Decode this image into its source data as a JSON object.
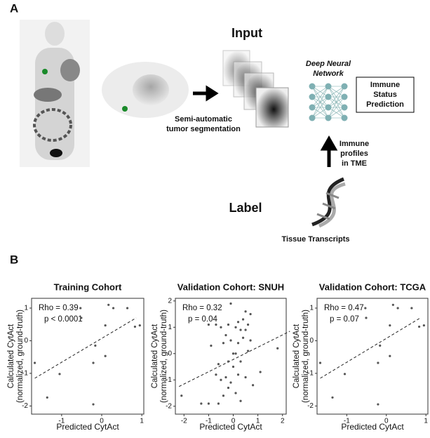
{
  "panel_a": {
    "label": "A",
    "input": "Input",
    "label_title": "Label",
    "segmentation": [
      "Semi-automatic",
      "tumor segmentation"
    ],
    "network": [
      "Deep Neural",
      "Network"
    ],
    "prediction": [
      "Immune",
      "Status",
      "Prediction"
    ],
    "profiles": [
      "Immune",
      "profiles",
      "in TME"
    ],
    "transcripts": "Tissue Transcripts"
  },
  "panel_b": {
    "label": "B"
  },
  "chart_data": [
    {
      "type": "scatter",
      "title": "Training Cohort",
      "x_label": "Predicted CytAct",
      "y_label": [
        "Calculated CytAct",
        "(normalized, ground-truth)"
      ],
      "annotations": [
        "Rho = 0.39",
        "p < 0.0001"
      ],
      "x": [
        -0.53,
        -0.51,
        0.17,
        0.29,
        0.64,
        0.83,
        0.95,
        0.09,
        -0.21,
        -0.16,
        0.09,
        -1.67,
        -1.05,
        -1.36,
        -0.21
      ],
      "y": [
        1.0,
        0.7,
        1.1,
        1.0,
        1.0,
        0.43,
        0.47,
        0.47,
        -0.68,
        -0.15,
        -0.47,
        -0.68,
        -1.02,
        -1.74,
        -1.95
      ],
      "trend_line": {
        "x": [
          -1.67,
          0.86
        ],
        "y": [
          -1.15,
          0.7
        ]
      },
      "xlim": [
        -1.75,
        1.05
      ],
      "ylim": [
        -2.25,
        1.3
      ],
      "xticks": [
        -1,
        0,
        1
      ],
      "yticks": [
        1,
        0,
        -1,
        -2
      ]
    },
    {
      "type": "scatter",
      "title": "Validation Cohort: SNUH",
      "x_label": "Predicted CytAct",
      "y_label": [
        "Calculated CytAct",
        "(normalized, ground-truth)"
      ],
      "annotations": [
        "Rho = 0.32",
        "p = 0.04"
      ],
      "x": [
        -2.1,
        -1.3,
        -1.0,
        -0.6,
        -0.4,
        -0.2,
        0.1,
        0.3,
        -0.7,
        -0.5,
        -0.3,
        -0.1,
        0.2,
        0.5,
        0.8,
        -0.6,
        -0.2,
        0.0,
        0.1,
        0.3,
        0.6,
        1.1,
        -0.9,
        -0.4,
        -0.1,
        0.2,
        0.4,
        0.7,
        1.8,
        -0.7,
        -0.5,
        -0.2,
        0.1,
        0.4,
        0.6,
        0.5,
        0.2,
        -0.3,
        0.7,
        0.5,
        -0.1,
        0.0,
        -1.0,
        0.3
      ],
      "y": [
        -1.6,
        -1.9,
        -1.9,
        -1.9,
        -1.6,
        -1.3,
        -1.5,
        -1.8,
        -0.8,
        -1.0,
        -0.9,
        -1.1,
        -0.8,
        -0.9,
        -1.2,
        -0.4,
        -0.3,
        0.0,
        0.0,
        -0.3,
        0.1,
        -0.7,
        0.3,
        0.4,
        0.5,
        0.4,
        0.6,
        0.5,
        0.2,
        1.1,
        1.0,
        1.1,
        1.0,
        1.3,
        1.1,
        0.9,
        1.2,
        0.7,
        1.5,
        1.6,
        1.9,
        -0.5,
        1.1,
        0.9
      ],
      "trend_line": {
        "x": [
          -2.2,
          2.3
        ],
        "y": [
          -1.25,
          0.85
        ]
      },
      "xlim": [
        -2.35,
        2.15
      ],
      "ylim": [
        -2.3,
        2.1
      ],
      "xticks": [
        -2,
        -1,
        0,
        1,
        2
      ],
      "yticks": [
        2,
        1,
        0,
        -1,
        -2
      ]
    },
    {
      "type": "scatter",
      "title": "Validation Cohort: TCGA",
      "x_label": "Predicted CytAct",
      "y_label": [
        "Calculated CytAct",
        "(normalized, ground-truth)"
      ],
      "annotations": [
        "Rho = 0.47",
        "p = 0.07"
      ],
      "x": [
        -0.53,
        -0.51,
        0.17,
        0.29,
        0.64,
        0.83,
        0.95,
        0.09,
        -0.21,
        -0.16,
        0.09,
        -1.67,
        -1.05,
        -1.36,
        -0.21
      ],
      "y": [
        1.0,
        0.7,
        1.1,
        1.0,
        1.0,
        0.43,
        0.47,
        0.47,
        -0.68,
        -0.15,
        -0.47,
        -0.68,
        -1.02,
        -1.74,
        -1.95
      ],
      "trend_line": {
        "x": [
          -1.67,
          0.86
        ],
        "y": [
          -1.15,
          0.7
        ]
      },
      "xlim": [
        -1.75,
        1.05
      ],
      "ylim": [
        -2.25,
        1.3
      ],
      "xticks": [
        -1,
        0,
        1
      ],
      "yticks": [
        1,
        0,
        -1,
        -2
      ]
    }
  ]
}
